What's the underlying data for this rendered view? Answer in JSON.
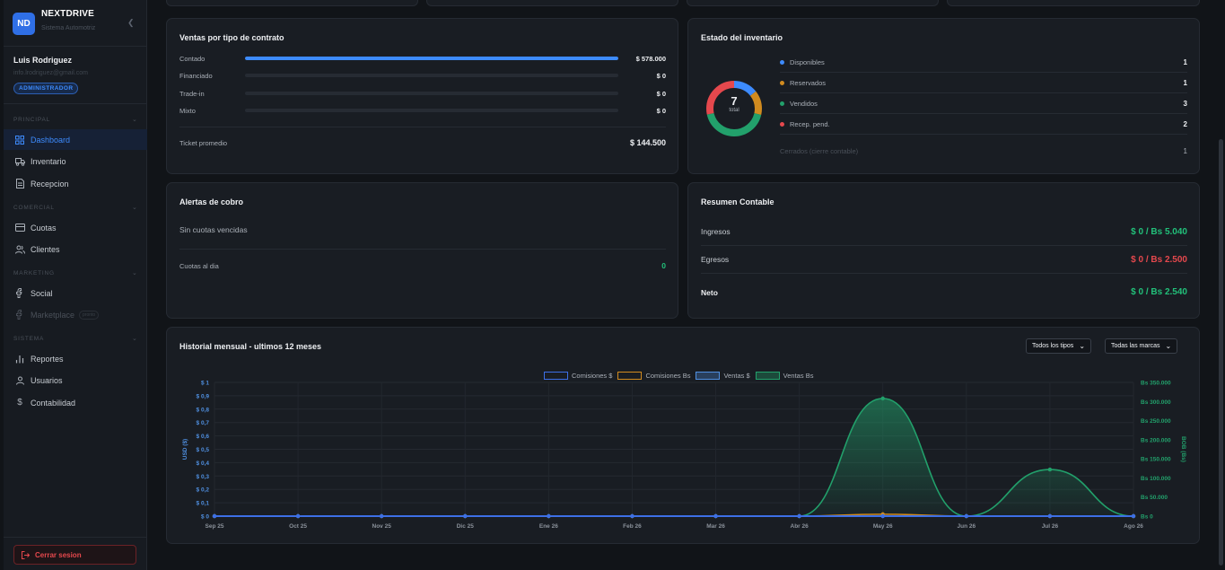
{
  "brand": {
    "logo": "ND",
    "name": "NEXTDRIVE",
    "subtitle": "Sistema Automotriz",
    "collapse_icon": "chevron-left-icon"
  },
  "user": {
    "name": "Luis Rodriguez",
    "email": "info.lrodriguez@gmail.com",
    "role": "ADMINISTRADOR"
  },
  "nav": {
    "principal_label": "PRINCIPAL",
    "comercial_label": "COMERCIAL",
    "marketing_label": "MARKETING",
    "sistema_label": "SISTEMA",
    "items": [
      {
        "label": "Dashboard",
        "icon": "grid-icon",
        "active": true
      },
      {
        "label": "Inventario",
        "icon": "truck-icon"
      },
      {
        "label": "Recepcion",
        "icon": "document-icon"
      },
      {
        "label": "Cuotas",
        "icon": "card-icon"
      },
      {
        "label": "Clientes",
        "icon": "users-icon"
      },
      {
        "label": "Social",
        "icon": "facebook-icon"
      },
      {
        "label": "Marketplace",
        "icon": "facebook-icon",
        "badge": "pronto",
        "disabled": true
      },
      {
        "label": "Reportes",
        "icon": "bar-chart-icon"
      },
      {
        "label": "Usuarios",
        "icon": "user-icon"
      },
      {
        "label": "Contabilidad",
        "icon": "dollar-icon"
      }
    ],
    "logout_label": "Cerrar sesion"
  },
  "sales_by_contract": {
    "title": "Ventas por tipo de contrato",
    "rows": [
      {
        "label": "Contado",
        "value": "$ 578.000",
        "fill": 1.0
      },
      {
        "label": "Financiado",
        "value": "$ 0",
        "fill": 0
      },
      {
        "label": "Trade-in",
        "value": "$ 0",
        "fill": 0
      },
      {
        "label": "Mixto",
        "value": "$ 0",
        "fill": 0
      }
    ],
    "ticket_label": "Ticket promedio",
    "ticket_value": "$ 144.500"
  },
  "inventory": {
    "title": "Estado del inventario",
    "total": "7",
    "total_label": "total",
    "rows": [
      {
        "label": "Disponibles",
        "value": "1",
        "color": "#3d8bfd"
      },
      {
        "label": "Reservados",
        "value": "1",
        "color": "#d18b1f"
      },
      {
        "label": "Vendidos",
        "value": "3",
        "color": "#22a06b"
      },
      {
        "label": "Recep. pend.",
        "value": "2",
        "color": "#e5484d"
      }
    ],
    "closed_label": "Cerrados (cierre contable)",
    "closed_value": "1"
  },
  "collection_alerts": {
    "title": "Alertas de cobro",
    "message": "Sin cuotas vencidas",
    "ok_label": "Cuotas al dia",
    "ok_value": "0"
  },
  "accounting": {
    "title": "Resumen Contable",
    "income_label": "Ingresos",
    "income_value": "$ 0 / Bs 5.040",
    "expense_label": "Egresos",
    "expense_value": "$ 0 / Bs 2.500",
    "net_label": "Neto",
    "net_value": "$ 0 / Bs 2.540",
    "income_color": "#22c07a",
    "expense_color": "#e5484d"
  },
  "history": {
    "title": "Historial mensual - ultimos 12 meses",
    "type_filter": "Todos los tipos",
    "brand_filter": "Todas las marcas"
  },
  "chart_data": {
    "type": "area",
    "title": "Historial mensual - ultimos 12 meses",
    "x": [
      "Sep 25",
      "Oct 25",
      "Nov 25",
      "Dic 25",
      "Ene 26",
      "Feb 26",
      "Mar 26",
      "Abr 26",
      "May 26",
      "Jun 26",
      "Jul 26",
      "Ago 26"
    ],
    "y_left": {
      "label": "USD ($)",
      "ticks": [
        "$ 0",
        "$ 0,1",
        "$ 0,2",
        "$ 0,3",
        "$ 0,4",
        "$ 0,5",
        "$ 0,6",
        "$ 0,7",
        "$ 0,8",
        "$ 0,9",
        "$ 1"
      ],
      "range": [
        0,
        1
      ]
    },
    "y_right": {
      "label": "BOB (Bs)",
      "ticks": [
        "Bs 0",
        "Bs 50.000",
        "Bs 100.000",
        "Bs 150.000",
        "Bs 200.000",
        "Bs 250.000",
        "Bs 300.000",
        "Bs 350.000"
      ],
      "range": [
        0,
        350000
      ]
    },
    "series": [
      {
        "name": "Comisiones $",
        "axis": "left",
        "color": "#3d6fe6",
        "values": [
          0,
          0,
          0,
          0,
          0,
          0,
          0,
          0,
          0,
          0,
          0,
          0
        ]
      },
      {
        "name": "Comisiones Bs",
        "axis": "right",
        "color": "#d18b1f",
        "values": [
          0,
          0,
          0,
          0,
          0,
          0,
          0,
          0,
          5000,
          0,
          0,
          0
        ]
      },
      {
        "name": "Ventas $",
        "axis": "left",
        "color": "#4f8fe0",
        "values": [
          0,
          0,
          0,
          0,
          0,
          0,
          0,
          0,
          0,
          0,
          0,
          0
        ]
      },
      {
        "name": "Ventas Bs",
        "axis": "right",
        "color": "#22a06b",
        "values": [
          0,
          0,
          0,
          0,
          0,
          0,
          0,
          0,
          308000,
          0,
          122000,
          0
        ]
      }
    ],
    "grid": true,
    "legend": "top-center"
  }
}
